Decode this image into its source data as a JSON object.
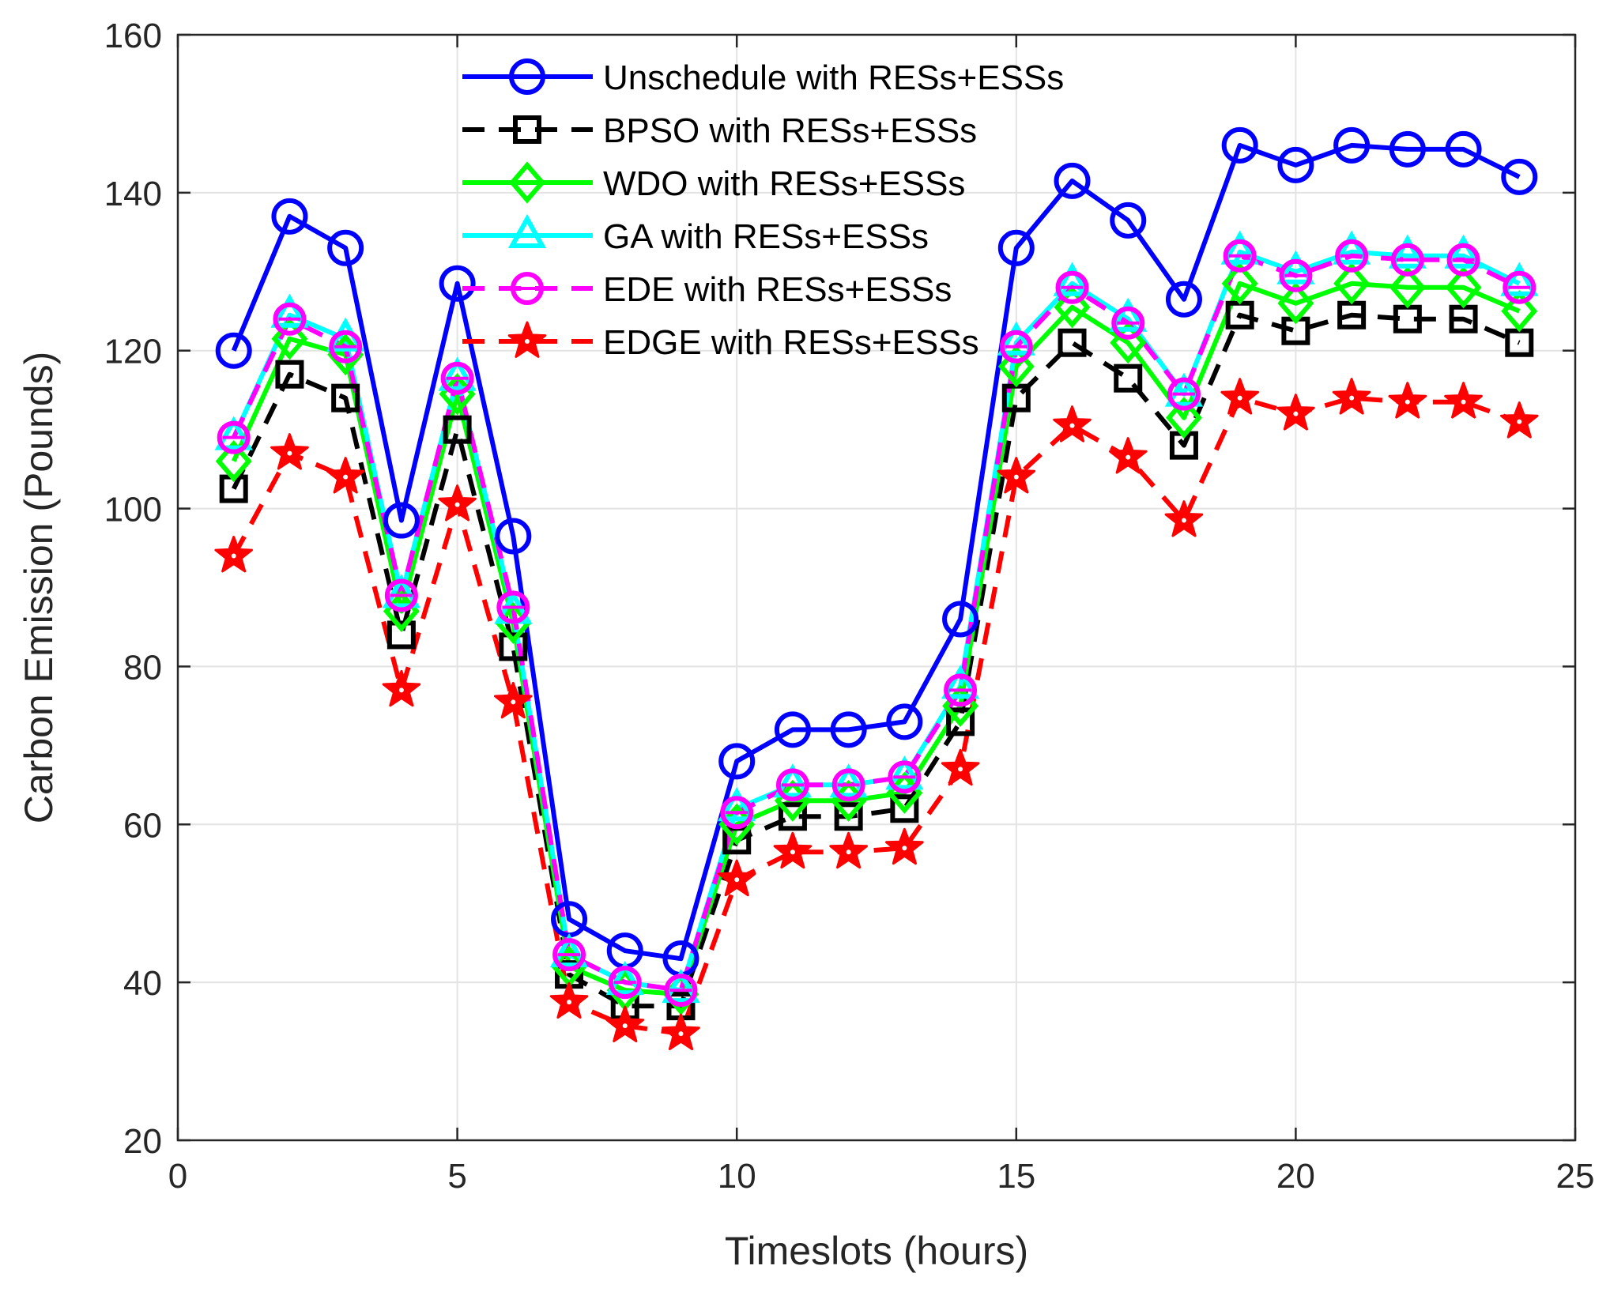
{
  "chart_data": {
    "type": "line",
    "title": "",
    "xlabel": "Timeslots (hours)",
    "ylabel": "Carbon Emission (Pounds)",
    "xlim": [
      0,
      25
    ],
    "ylim": [
      20,
      160
    ],
    "xticks": [
      0,
      5,
      10,
      15,
      20,
      25
    ],
    "yticks": [
      20,
      40,
      60,
      80,
      100,
      120,
      140,
      160
    ],
    "grid": true,
    "legend_position": "top-center",
    "x": [
      1,
      2,
      3,
      4,
      5,
      6,
      7,
      8,
      9,
      10,
      11,
      12,
      13,
      14,
      15,
      16,
      17,
      18,
      19,
      20,
      21,
      22,
      23,
      24
    ],
    "series": [
      {
        "name": "Unschedule with RESs+ESSs",
        "color": "#0000ff",
        "dash": "solid",
        "marker": "circle",
        "values": [
          120,
          137,
          133,
          98.5,
          128.5,
          96.5,
          48,
          44,
          43,
          68,
          72,
          72,
          73,
          86,
          133,
          141.5,
          136.5,
          126.5,
          146,
          143.5,
          146,
          145.5,
          145.5,
          142
        ]
      },
      {
        "name": "BPSO with RESs+ESSs",
        "color": "#000000",
        "dash": "dashed",
        "marker": "square",
        "values": [
          102.5,
          117,
          114,
          84,
          110,
          82.5,
          41,
          37,
          37,
          58,
          61,
          61,
          62,
          73,
          114,
          121,
          116.5,
          108,
          124.5,
          122.5,
          124.5,
          124,
          124,
          121
        ]
      },
      {
        "name": "WDO with RESs+ESSs",
        "color": "#00ff00",
        "dash": "solid",
        "marker": "diamond",
        "values": [
          106,
          121.5,
          119.5,
          87,
          114.5,
          85.5,
          42,
          39,
          38.5,
          60,
          63,
          63,
          64,
          75,
          118,
          125.5,
          121,
          111.5,
          128.5,
          126,
          128.5,
          128,
          128,
          125
        ]
      },
      {
        "name": "GA with RESs+ESSs",
        "color": "#00ffff",
        "dash": "solid",
        "marker": "triangle",
        "values": [
          109,
          124.5,
          121.5,
          89,
          116.5,
          87,
          43.5,
          40,
          39,
          62,
          65,
          65,
          66,
          77.5,
          121,
          128.5,
          124,
          114.5,
          132.5,
          130,
          132.5,
          132,
          132,
          128.5
        ]
      },
      {
        "name": "EDE with RESs+ESSs",
        "color": "#ff00ff",
        "dash": "dashed",
        "marker": "circle-bar",
        "values": [
          109,
          124,
          120.5,
          89,
          116.5,
          87.5,
          43.5,
          40,
          39,
          61.5,
          65,
          65,
          66,
          77,
          120.5,
          128,
          123.5,
          114.5,
          132,
          129.5,
          132,
          131.5,
          131.5,
          128
        ]
      },
      {
        "name": "EDGE with RESs+ESSs",
        "color": "#ff0000",
        "dash": "dashed",
        "marker": "star",
        "values": [
          94,
          107,
          104,
          77,
          100.5,
          75.5,
          37.5,
          34.5,
          33.5,
          53,
          56.5,
          56.5,
          57,
          67,
          104,
          110.5,
          106.5,
          98.5,
          114,
          112,
          114,
          113.5,
          113.5,
          111
        ]
      }
    ]
  }
}
